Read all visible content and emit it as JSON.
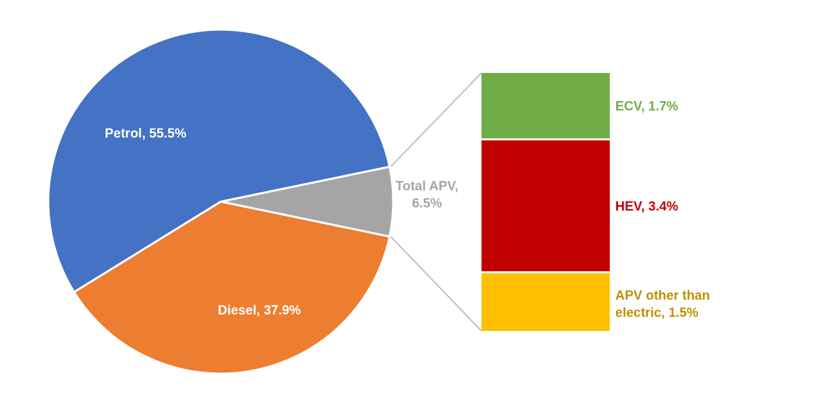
{
  "chart_data": {
    "type": "bar-of-pie",
    "pie": {
      "slices": [
        {
          "label": "Petrol",
          "value": 55.5,
          "pct_text": "55.5%",
          "color": "#4472C4",
          "label_color": "#ffffff"
        },
        {
          "label": "Diesel",
          "value": 37.9,
          "pct_text": "37.9%",
          "color": "#ED7D31",
          "label_color": "#ffffff"
        },
        {
          "label": "Total APV",
          "value": 6.5,
          "pct_text": "6.5%",
          "color": "#A5A5A5",
          "label_color": "#A5A5A5"
        }
      ]
    },
    "bar": {
      "parent": "Total APV",
      "segments": [
        {
          "label": "ECV",
          "value": 1.7,
          "pct_text": "1.7%",
          "color": "#70AD47",
          "label_color": "#70AD47",
          "label_lines": [
            "ECV, 1.7%"
          ]
        },
        {
          "label": "HEV",
          "value": 3.4,
          "pct_text": "3.4%",
          "color": "#C00000",
          "label_color": "#C00000",
          "label_lines": [
            "HEV, 3.4%"
          ]
        },
        {
          "label": "APV other than electric",
          "value": 1.5,
          "pct_text": "1.5%",
          "color": "#FFC000",
          "label_color": "#BF9000",
          "label_lines": [
            "APV other than",
            "electric, 1.5%"
          ]
        }
      ]
    },
    "connector_color": "#BFBFBF"
  }
}
